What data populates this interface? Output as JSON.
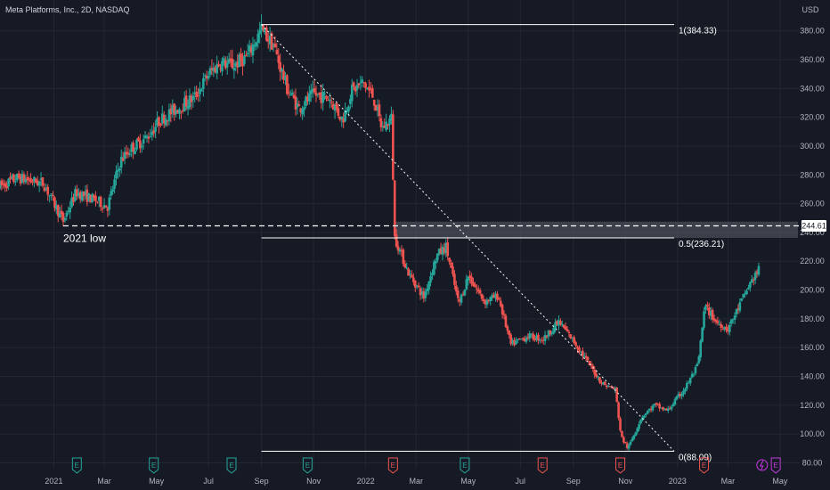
{
  "title": "Meta Platforms, Inc., 2D, NASDAQ",
  "currency": "USD",
  "colors": {
    "background": "#161a25",
    "grid": "#232733",
    "up": "#26a69a",
    "down": "#ef5350",
    "line": "#ffffff",
    "zone": "#5d606b",
    "earnings_past_green": "#26a69a",
    "earnings_past_red": "#ef5350",
    "earnings_future": "#c739e0"
  },
  "annotations": {
    "fib_1": "1(384.33)",
    "fib_05": "0.5(236.21)",
    "fib_0": "0(88.09)",
    "low_label": "2021 low",
    "current_price_tag": "244.61"
  },
  "earnings_marker_text": "E",
  "chart_data": {
    "type": "candlestick",
    "title": "Meta Platforms, Inc., 2D, NASDAQ",
    "ylim": [
      76,
      394
    ],
    "y_ticks": [
      80,
      100,
      120,
      140,
      160,
      180,
      200,
      220,
      240,
      260,
      280,
      300,
      320,
      340,
      360,
      380
    ],
    "y_tick_labels": [
      "80.00",
      "100.00",
      "120.00",
      "140.00",
      "160.00",
      "180.00",
      "200.00",
      "220.00",
      "240.00",
      "260.00",
      "280.00",
      "300.00",
      "320.00",
      "340.00",
      "360.00",
      "380.00"
    ],
    "x_ticks": [
      "2021-01-01",
      "2021-03-01",
      "2021-05-01",
      "2021-07-01",
      "2021-09-01",
      "2021-11-01",
      "2022-01-01",
      "2022-03-01",
      "2022-05-01",
      "2022-07-01",
      "2022-09-01",
      "2022-11-01",
      "2023-01-01",
      "2023-03-01",
      "2023-05-01"
    ],
    "x_tick_labels": [
      "2021",
      "Mar",
      "May",
      "Jul",
      "Sep",
      "Nov",
      "2022",
      "Mar",
      "May",
      "Jul",
      "Sep",
      "Nov",
      "2023",
      "Mar",
      "May"
    ],
    "xlim": [
      "2020-10-30",
      "2023-05-24"
    ],
    "price_path": [
      [
        "2020-10-30",
        272
      ],
      [
        "2020-11-20",
        278
      ],
      [
        "2020-12-20",
        274
      ],
      [
        "2021-01-12",
        248
      ],
      [
        "2021-01-27",
        268
      ],
      [
        "2021-02-20",
        262
      ],
      [
        "2021-03-05",
        258
      ],
      [
        "2021-03-20",
        290
      ],
      [
        "2021-04-01",
        298
      ],
      [
        "2021-04-20",
        306
      ],
      [
        "2021-05-05",
        318
      ],
      [
        "2021-05-25",
        326
      ],
      [
        "2021-06-15",
        334
      ],
      [
        "2021-07-01",
        350
      ],
      [
        "2021-07-15",
        358
      ],
      [
        "2021-07-30",
        356
      ],
      [
        "2021-08-15",
        362
      ],
      [
        "2021-09-01",
        381
      ],
      [
        "2021-09-15",
        370
      ],
      [
        "2021-10-01",
        340
      ],
      [
        "2021-10-15",
        326
      ],
      [
        "2021-11-01",
        336
      ],
      [
        "2021-11-20",
        333
      ],
      [
        "2021-12-05",
        318
      ],
      [
        "2021-12-15",
        338
      ],
      [
        "2021-12-29",
        344
      ],
      [
        "2022-01-10",
        334
      ],
      [
        "2022-01-20",
        312
      ],
      [
        "2022-02-01",
        320
      ],
      [
        "2022-02-03",
        238
      ],
      [
        "2022-02-20",
        212
      ],
      [
        "2022-03-10",
        195
      ],
      [
        "2022-03-25",
        224
      ],
      [
        "2022-04-05",
        230
      ],
      [
        "2022-04-20",
        190
      ],
      [
        "2022-05-01",
        210
      ],
      [
        "2022-05-20",
        192
      ],
      [
        "2022-06-05",
        196
      ],
      [
        "2022-06-20",
        162
      ],
      [
        "2022-07-10",
        168
      ],
      [
        "2022-07-28",
        166
      ],
      [
        "2022-08-15",
        178
      ],
      [
        "2022-09-01",
        165
      ],
      [
        "2022-09-20",
        148
      ],
      [
        "2022-10-05",
        135
      ],
      [
        "2022-10-20",
        131
      ],
      [
        "2022-10-27",
        98
      ],
      [
        "2022-11-04",
        90
      ],
      [
        "2022-11-20",
        112
      ],
      [
        "2022-12-05",
        120
      ],
      [
        "2022-12-20",
        116
      ],
      [
        "2023-01-10",
        132
      ],
      [
        "2023-01-25",
        148
      ],
      [
        "2023-02-02",
        189
      ],
      [
        "2023-02-15",
        178
      ],
      [
        "2023-03-01",
        173
      ],
      [
        "2023-03-15",
        190
      ],
      [
        "2023-03-28",
        206
      ],
      [
        "2023-04-06",
        214
      ]
    ],
    "fib_levels": [
      {
        "label": "1(384.33)",
        "value": 384.33
      },
      {
        "label": "0.5(236.21)",
        "value": 236.21
      },
      {
        "label": "0(88.09)",
        "value": 88.09
      }
    ],
    "horizontal_dashed": {
      "value": 244.61,
      "label": "2021 low",
      "from": "2021-01-12"
    },
    "zone": {
      "from": "2022-02-03",
      "to": "2023-05-22",
      "low": 236.21,
      "high": 247.5
    },
    "trendline": {
      "from": [
        "2021-09-01",
        384.33
      ],
      "to": [
        "2023-02-02",
        88.09
      ]
    },
    "fib_span": {
      "from": "2021-09-01",
      "to": "2023-02-02"
    },
    "earnings": [
      {
        "date": "2021-01-28",
        "type": "past-green"
      },
      {
        "date": "2021-04-28",
        "type": "past-green"
      },
      {
        "date": "2021-07-28",
        "type": "past-green"
      },
      {
        "date": "2021-10-25",
        "type": "past-green"
      },
      {
        "date": "2022-02-02",
        "type": "past-red"
      },
      {
        "date": "2022-04-27",
        "type": "past-green"
      },
      {
        "date": "2022-07-27",
        "type": "past-red"
      },
      {
        "date": "2022-10-26",
        "type": "past-red"
      },
      {
        "date": "2023-02-01",
        "type": "past-red"
      },
      {
        "date": "2023-04-26",
        "type": "future"
      }
    ]
  }
}
